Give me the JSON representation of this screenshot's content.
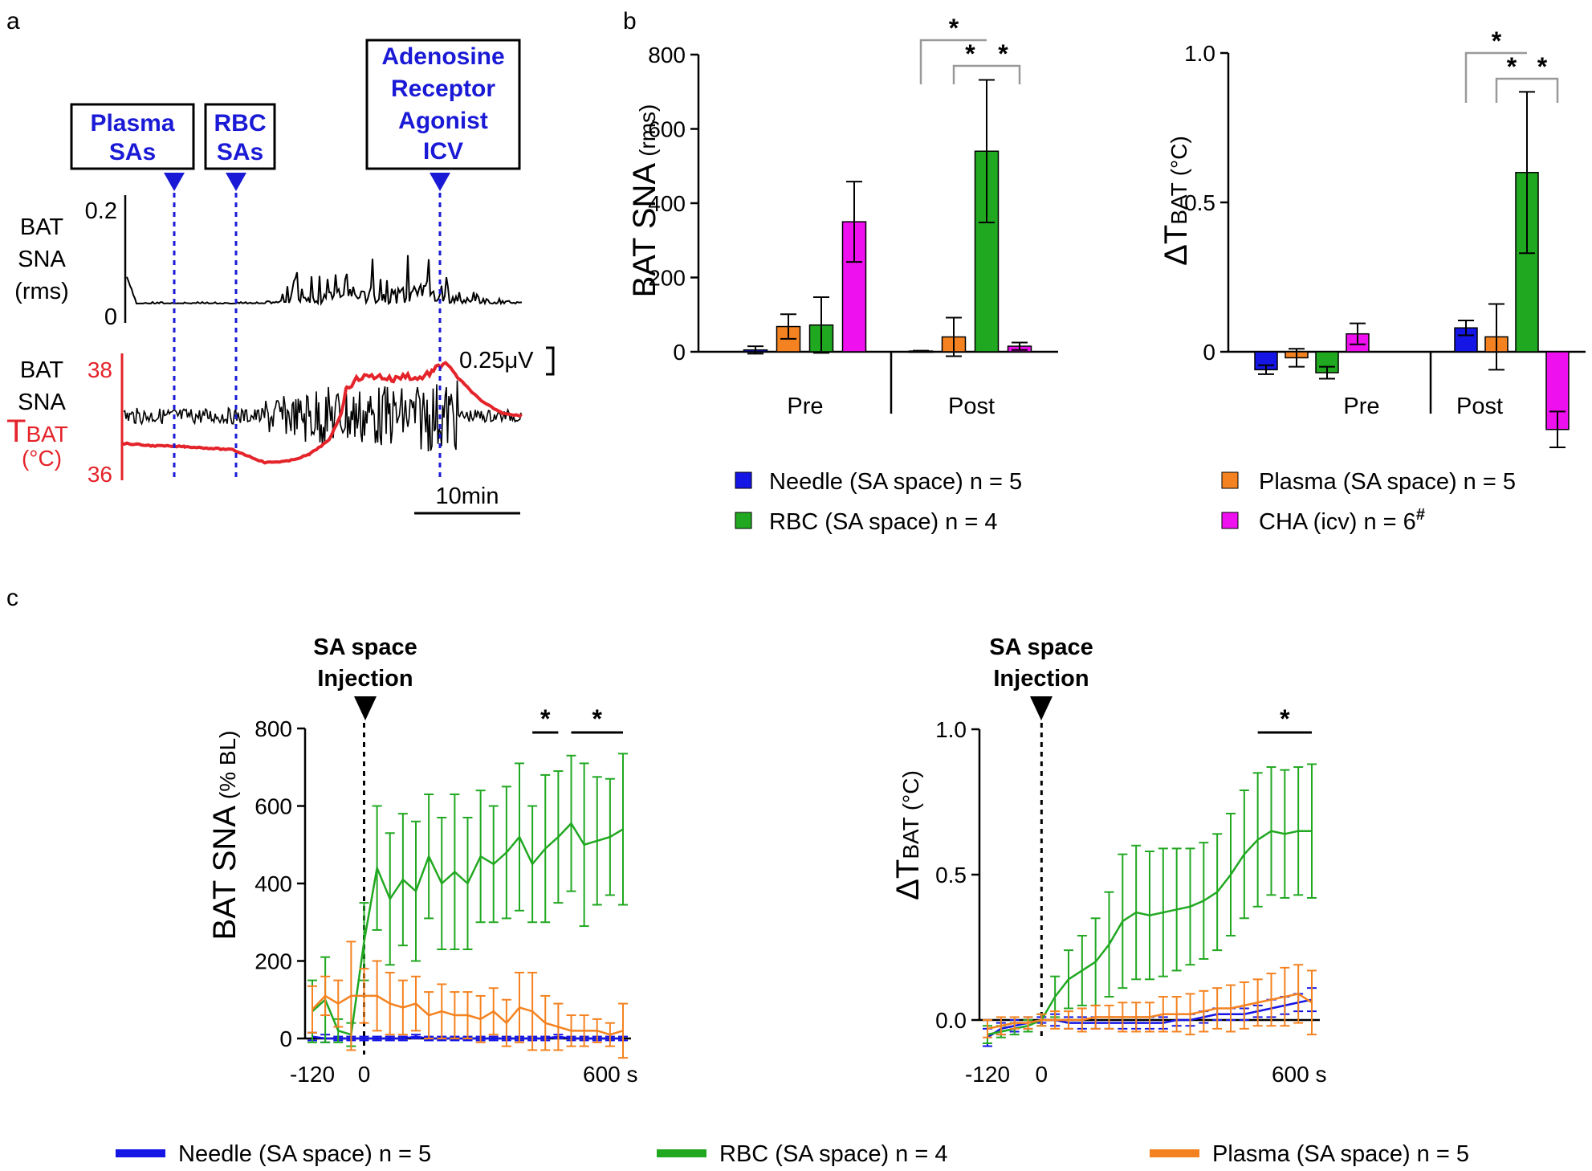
{
  "colors": {
    "needle": "#1515e6",
    "rbc": "#21a821",
    "plasma": "#f58220",
    "cha": "#ee10ee",
    "red": "#e4232a",
    "annotation_blue": "#1a1ad6",
    "bracket": "#999999"
  },
  "panel_a": {
    "letter": "a",
    "boxes": [
      {
        "lines": [
          "Plasma",
          "SAs"
        ]
      },
      {
        "lines": [
          "RBC",
          "SAs"
        ]
      },
      {
        "lines": [
          "Adenosine",
          "Receptor",
          "Agonist",
          "ICV"
        ]
      }
    ],
    "trace1": {
      "label_lines": [
        "BAT",
        "SNA",
        "(rms)"
      ],
      "top_tick": "0.2",
      "bottom_tick": "0"
    },
    "trace2": {
      "label_lines": [
        "BAT",
        "SNA"
      ],
      "tbat_main": "T",
      "tbat_sub": "BAT",
      "tbat_unit": "(°C)",
      "top_tick": "38",
      "bottom_tick": "36"
    },
    "scale_voltage": "0.25μV",
    "scale_time": "10min"
  },
  "panel_b": {
    "letter": "b",
    "left": {
      "ylabel_main": "BAT SNA",
      "ylabel_unit": "(rms)",
      "yticks": [
        "0",
        "200",
        "400",
        "600",
        "800"
      ],
      "stars": [
        "*",
        "*",
        "*"
      ]
    },
    "right": {
      "ylabel_main": "ΔT",
      "ylabel_sub": "BAT",
      "ylabel_unit": "(°C)",
      "yticks": [
        "0",
        "0.5",
        "1.0"
      ],
      "stars": [
        "*",
        "*",
        "*"
      ]
    },
    "legend": [
      {
        "key": "needle",
        "label": "Needle (SA space) n = 5"
      },
      {
        "key": "plasma",
        "label": "Plasma (SA space) n = 5"
      },
      {
        "key": "rbc",
        "label": "RBC (SA space) n = 4"
      },
      {
        "key": "cha",
        "label": "CHA (icv) n = 6",
        "superscript": "#"
      }
    ]
  },
  "panel_c": {
    "letter": "c",
    "injection_lines": [
      "SA space",
      "Injection"
    ],
    "left": {
      "ylabel_main": "BAT SNA",
      "ylabel_unit": "(% BL)",
      "yticks": [
        "0",
        "200",
        "400",
        "600",
        "800"
      ],
      "xticks": [
        "-120",
        "0",
        "600 s"
      ],
      "stars": [
        "*",
        "*"
      ]
    },
    "right": {
      "ylabel_main": "ΔT",
      "ylabel_sub": "BAT",
      "ylabel_unit": "(°C)",
      "yticks": [
        "0.0",
        "0.5",
        "1.0"
      ],
      "xticks": [
        "-120",
        "0",
        "600 s"
      ],
      "stars": [
        "*"
      ]
    },
    "legend": [
      {
        "key": "needle",
        "label": "Needle (SA space) n = 5"
      },
      {
        "key": "rbc",
        "label": "RBC (SA space) n = 4"
      },
      {
        "key": "plasma",
        "label": "Plasma (SA space) n = 5"
      }
    ]
  },
  "chart_data": [
    {
      "id": "b-left",
      "type": "bar",
      "title": "",
      "ylabel": "BAT SNA (rms)",
      "ylim": [
        0,
        800
      ],
      "categories": [
        "Pre",
        "Post"
      ],
      "series": [
        {
          "name": "Needle (SA space) n = 5",
          "values": [
            5,
            2
          ],
          "errors": [
            10,
            1
          ]
        },
        {
          "name": "Plasma (SA space) n = 5",
          "values": [
            68,
            40
          ],
          "errors": [
            33,
            52
          ]
        },
        {
          "name": "RBC (SA space) n = 4",
          "values": [
            72,
            540
          ],
          "errors": [
            75,
            192
          ]
        },
        {
          "name": "CHA (icv) n = 6",
          "values": [
            350,
            15
          ],
          "errors": [
            108,
            10
          ]
        }
      ],
      "significance": [
        {
          "between": [
            "Needle",
            "RBC"
          ],
          "group": "Post",
          "mark": "*"
        },
        {
          "between": [
            "Plasma",
            "RBC"
          ],
          "group": "Post",
          "mark": "*"
        },
        {
          "between": [
            "RBC",
            "CHA"
          ],
          "group": "Post",
          "mark": "*"
        }
      ]
    },
    {
      "id": "b-right",
      "type": "bar",
      "title": "",
      "ylabel": "ΔTBAT (°C)",
      "ylim": [
        -0.3,
        1.0
      ],
      "categories": [
        "Pre",
        "Post"
      ],
      "series": [
        {
          "name": "Needle (SA space) n = 5",
          "values": [
            -0.06,
            0.08
          ],
          "errors": [
            0.015,
            0.025
          ]
        },
        {
          "name": "Plasma (SA space) n = 5",
          "values": [
            -0.02,
            0.05
          ],
          "errors": [
            0.03,
            0.11
          ]
        },
        {
          "name": "RBC (SA space) n = 4",
          "values": [
            -0.07,
            0.6
          ],
          "errors": [
            0.02,
            0.27
          ]
        },
        {
          "name": "CHA (icv) n = 6",
          "values": [
            0.06,
            -0.26
          ],
          "errors": [
            0.035,
            0.06
          ]
        }
      ],
      "significance": [
        {
          "between": [
            "Needle",
            "RBC"
          ],
          "group": "Post",
          "mark": "*"
        },
        {
          "between": [
            "Plasma",
            "RBC"
          ],
          "group": "Post",
          "mark": "*"
        },
        {
          "between": [
            "RBC",
            "CHA"
          ],
          "group": "Post",
          "mark": "*"
        }
      ]
    },
    {
      "id": "c-left",
      "type": "line",
      "ylabel": "BAT SNA (% BL)",
      "xlabel": "s",
      "xlim": [
        -120,
        600
      ],
      "ylim": [
        0,
        800
      ],
      "x": [
        -120,
        -90,
        -60,
        -30,
        0,
        30,
        60,
        90,
        120,
        150,
        180,
        210,
        240,
        270,
        300,
        330,
        360,
        390,
        420,
        450,
        480,
        510,
        540,
        570,
        600
      ],
      "series": [
        {
          "name": "Needle (SA space) n = 5",
          "values": [
            5,
            0,
            0,
            0,
            0,
            0,
            0,
            0,
            5,
            0,
            0,
            0,
            0,
            0,
            0,
            0,
            0,
            0,
            0,
            5,
            0,
            0,
            0,
            0,
            0
          ],
          "errors": [
            10,
            10,
            5,
            5,
            5,
            5,
            5,
            5,
            5,
            5,
            5,
            5,
            5,
            5,
            5,
            5,
            5,
            5,
            5,
            5,
            5,
            5,
            5,
            5,
            5
          ]
        },
        {
          "name": "RBC (SA space) n = 4",
          "values": [
            70,
            100,
            20,
            10,
            250,
            440,
            360,
            410,
            380,
            470,
            400,
            430,
            400,
            470,
            450,
            480,
            520,
            450,
            490,
            520,
            555,
            500,
            510,
            520,
            540
          ],
          "errors": [
            80,
            110,
            30,
            30,
            100,
            160,
            170,
            170,
            180,
            160,
            170,
            200,
            170,
            170,
            150,
            170,
            190,
            150,
            190,
            170,
            175,
            210,
            165,
            150,
            195
          ]
        },
        {
          "name": "Plasma (SA space) n = 5",
          "values": [
            75,
            110,
            90,
            110,
            110,
            110,
            90,
            80,
            90,
            60,
            70,
            60,
            60,
            50,
            70,
            40,
            80,
            70,
            40,
            30,
            20,
            20,
            20,
            10,
            20
          ],
          "errors": [
            60,
            50,
            60,
            140,
            70,
            90,
            80,
            70,
            70,
            60,
            70,
            60,
            60,
            60,
            60,
            60,
            90,
            100,
            70,
            60,
            40,
            40,
            30,
            30,
            70
          ]
        }
      ],
      "significance": [
        {
          "x_range": [
            390,
            450
          ],
          "mark": "*"
        },
        {
          "x_range": [
            480,
            600
          ],
          "mark": "*"
        }
      ]
    },
    {
      "id": "c-right",
      "type": "line",
      "ylabel": "ΔTBAT (°C)",
      "xlabel": "s",
      "xlim": [
        -120,
        600
      ],
      "ylim": [
        -0.1,
        1.0
      ],
      "x": [
        -120,
        -90,
        -60,
        -30,
        0,
        30,
        60,
        90,
        120,
        150,
        180,
        210,
        240,
        270,
        300,
        330,
        360,
        390,
        420,
        450,
        480,
        510,
        540,
        570,
        600
      ],
      "series": [
        {
          "name": "Needle (SA space) n = 5",
          "values": [
            -0.06,
            -0.03,
            -0.02,
            -0.01,
            0.0,
            0.0,
            -0.01,
            -0.01,
            -0.01,
            -0.01,
            -0.01,
            -0.01,
            -0.01,
            -0.01,
            0.0,
            0.0,
            0.01,
            0.02,
            0.02,
            0.02,
            0.03,
            0.04,
            0.05,
            0.06,
            0.07
          ],
          "errors": [
            0.03,
            0.02,
            0.02,
            0.02,
            0.01,
            0.02,
            0.02,
            0.02,
            0.02,
            0.02,
            0.02,
            0.02,
            0.02,
            0.02,
            0.02,
            0.02,
            0.02,
            0.02,
            0.02,
            0.02,
            0.02,
            0.03,
            0.03,
            0.03,
            0.04
          ]
        },
        {
          "name": "RBC (SA space) n = 4",
          "values": [
            -0.05,
            -0.04,
            -0.03,
            -0.02,
            0.0,
            0.08,
            0.14,
            0.17,
            0.2,
            0.26,
            0.34,
            0.37,
            0.36,
            0.37,
            0.38,
            0.39,
            0.41,
            0.44,
            0.5,
            0.57,
            0.62,
            0.65,
            0.64,
            0.65,
            0.65
          ],
          "errors": [
            0.03,
            0.02,
            0.02,
            0.02,
            0.02,
            0.07,
            0.1,
            0.12,
            0.15,
            0.18,
            0.23,
            0.23,
            0.22,
            0.22,
            0.21,
            0.2,
            0.2,
            0.2,
            0.21,
            0.22,
            0.23,
            0.22,
            0.22,
            0.22,
            0.23
          ]
        },
        {
          "name": "Plasma (SA space) n = 5",
          "values": [
            -0.03,
            -0.02,
            -0.01,
            -0.01,
            0.0,
            0.0,
            0.0,
            0.0,
            0.01,
            0.01,
            0.01,
            0.01,
            0.01,
            0.02,
            0.02,
            0.02,
            0.03,
            0.04,
            0.04,
            0.05,
            0.06,
            0.07,
            0.08,
            0.09,
            0.06
          ],
          "errors": [
            0.03,
            0.03,
            0.02,
            0.02,
            0.02,
            0.03,
            0.03,
            0.04,
            0.04,
            0.04,
            0.05,
            0.05,
            0.05,
            0.06,
            0.06,
            0.07,
            0.07,
            0.07,
            0.08,
            0.08,
            0.08,
            0.09,
            0.1,
            0.1,
            0.11
          ]
        }
      ],
      "significance": [
        {
          "x_range": [
            480,
            600
          ],
          "mark": "*"
        }
      ]
    }
  ]
}
